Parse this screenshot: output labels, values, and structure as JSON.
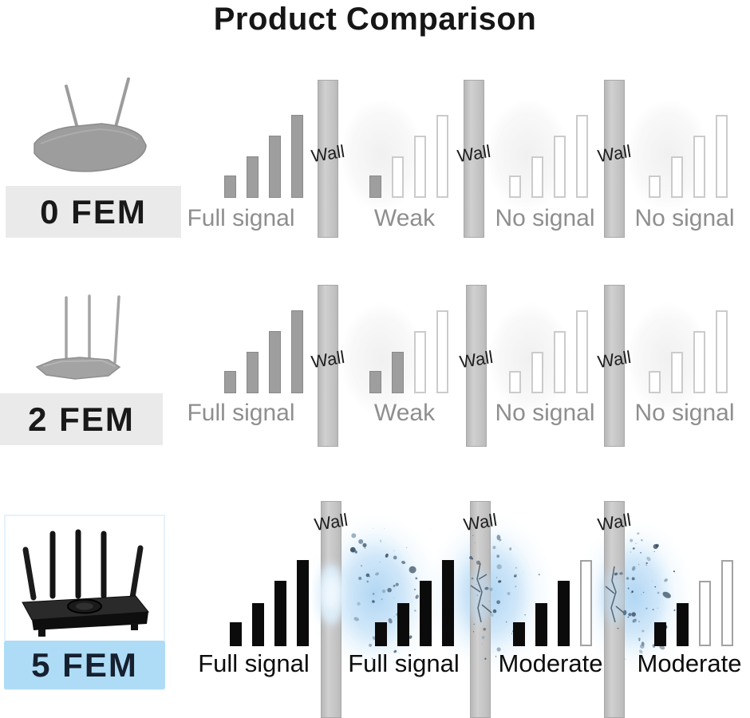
{
  "title": "Product Comparison",
  "wall_label": "Wall",
  "rows": [
    {
      "fem_label": "0 FEM",
      "router_icon": "router-2-antennas",
      "walls": [
        "Wall",
        "Wall",
        "Wall"
      ],
      "signals": [
        {
          "label": "Full signal",
          "filled_bars": 4,
          "total_bars": 4,
          "bar_style": "gray"
        },
        {
          "label": "Weak",
          "filled_bars": 1,
          "total_bars": 4,
          "bar_style": "gray"
        },
        {
          "label": "No signal",
          "filled_bars": 0,
          "total_bars": 4,
          "bar_style": "gray"
        },
        {
          "label": "No signal",
          "filled_bars": 0,
          "total_bars": 4,
          "bar_style": "gray"
        }
      ]
    },
    {
      "fem_label": "2 FEM",
      "router_icon": "router-3-antennas",
      "walls": [
        "Wall",
        "Wall",
        "Wall"
      ],
      "signals": [
        {
          "label": "Full signal",
          "filled_bars": 4,
          "total_bars": 4,
          "bar_style": "gray"
        },
        {
          "label": "Weak",
          "filled_bars": 2,
          "total_bars": 4,
          "bar_style": "gray"
        },
        {
          "label": "No signal",
          "filled_bars": 0,
          "total_bars": 4,
          "bar_style": "gray"
        },
        {
          "label": "No signal",
          "filled_bars": 0,
          "total_bars": 4,
          "bar_style": "gray"
        }
      ]
    },
    {
      "fem_label": "5 FEM",
      "router_icon": "router-5-antennas",
      "walls": [
        "Wall",
        "Wall",
        "Wall"
      ],
      "signals": [
        {
          "label": "Full signal",
          "filled_bars": 4,
          "total_bars": 4,
          "bar_style": "black"
        },
        {
          "label": "Full signal",
          "filled_bars": 4,
          "total_bars": 4,
          "bar_style": "black"
        },
        {
          "label": "Moderate",
          "filled_bars": 3,
          "total_bars": 4,
          "bar_style": "black"
        },
        {
          "label": "Moderate",
          "filled_bars": 2,
          "total_bars": 4,
          "bar_style": "black"
        }
      ]
    }
  ],
  "colors": {
    "gray_bar_fill": "#9e9e9e",
    "outline_bar_border": "#cbcbcb",
    "black_bar_fill": "#0b0b0b",
    "wall_fill": "#c6c6c6",
    "gray_label_text": "#8e8e8e",
    "black_label_text": "#0d0d0d",
    "fem_gray_background": "#eaeaea",
    "fem_blue_background": "#aedcf6",
    "fem_blue_text": "#16202e",
    "burst_blue": "#b1d6f3"
  }
}
